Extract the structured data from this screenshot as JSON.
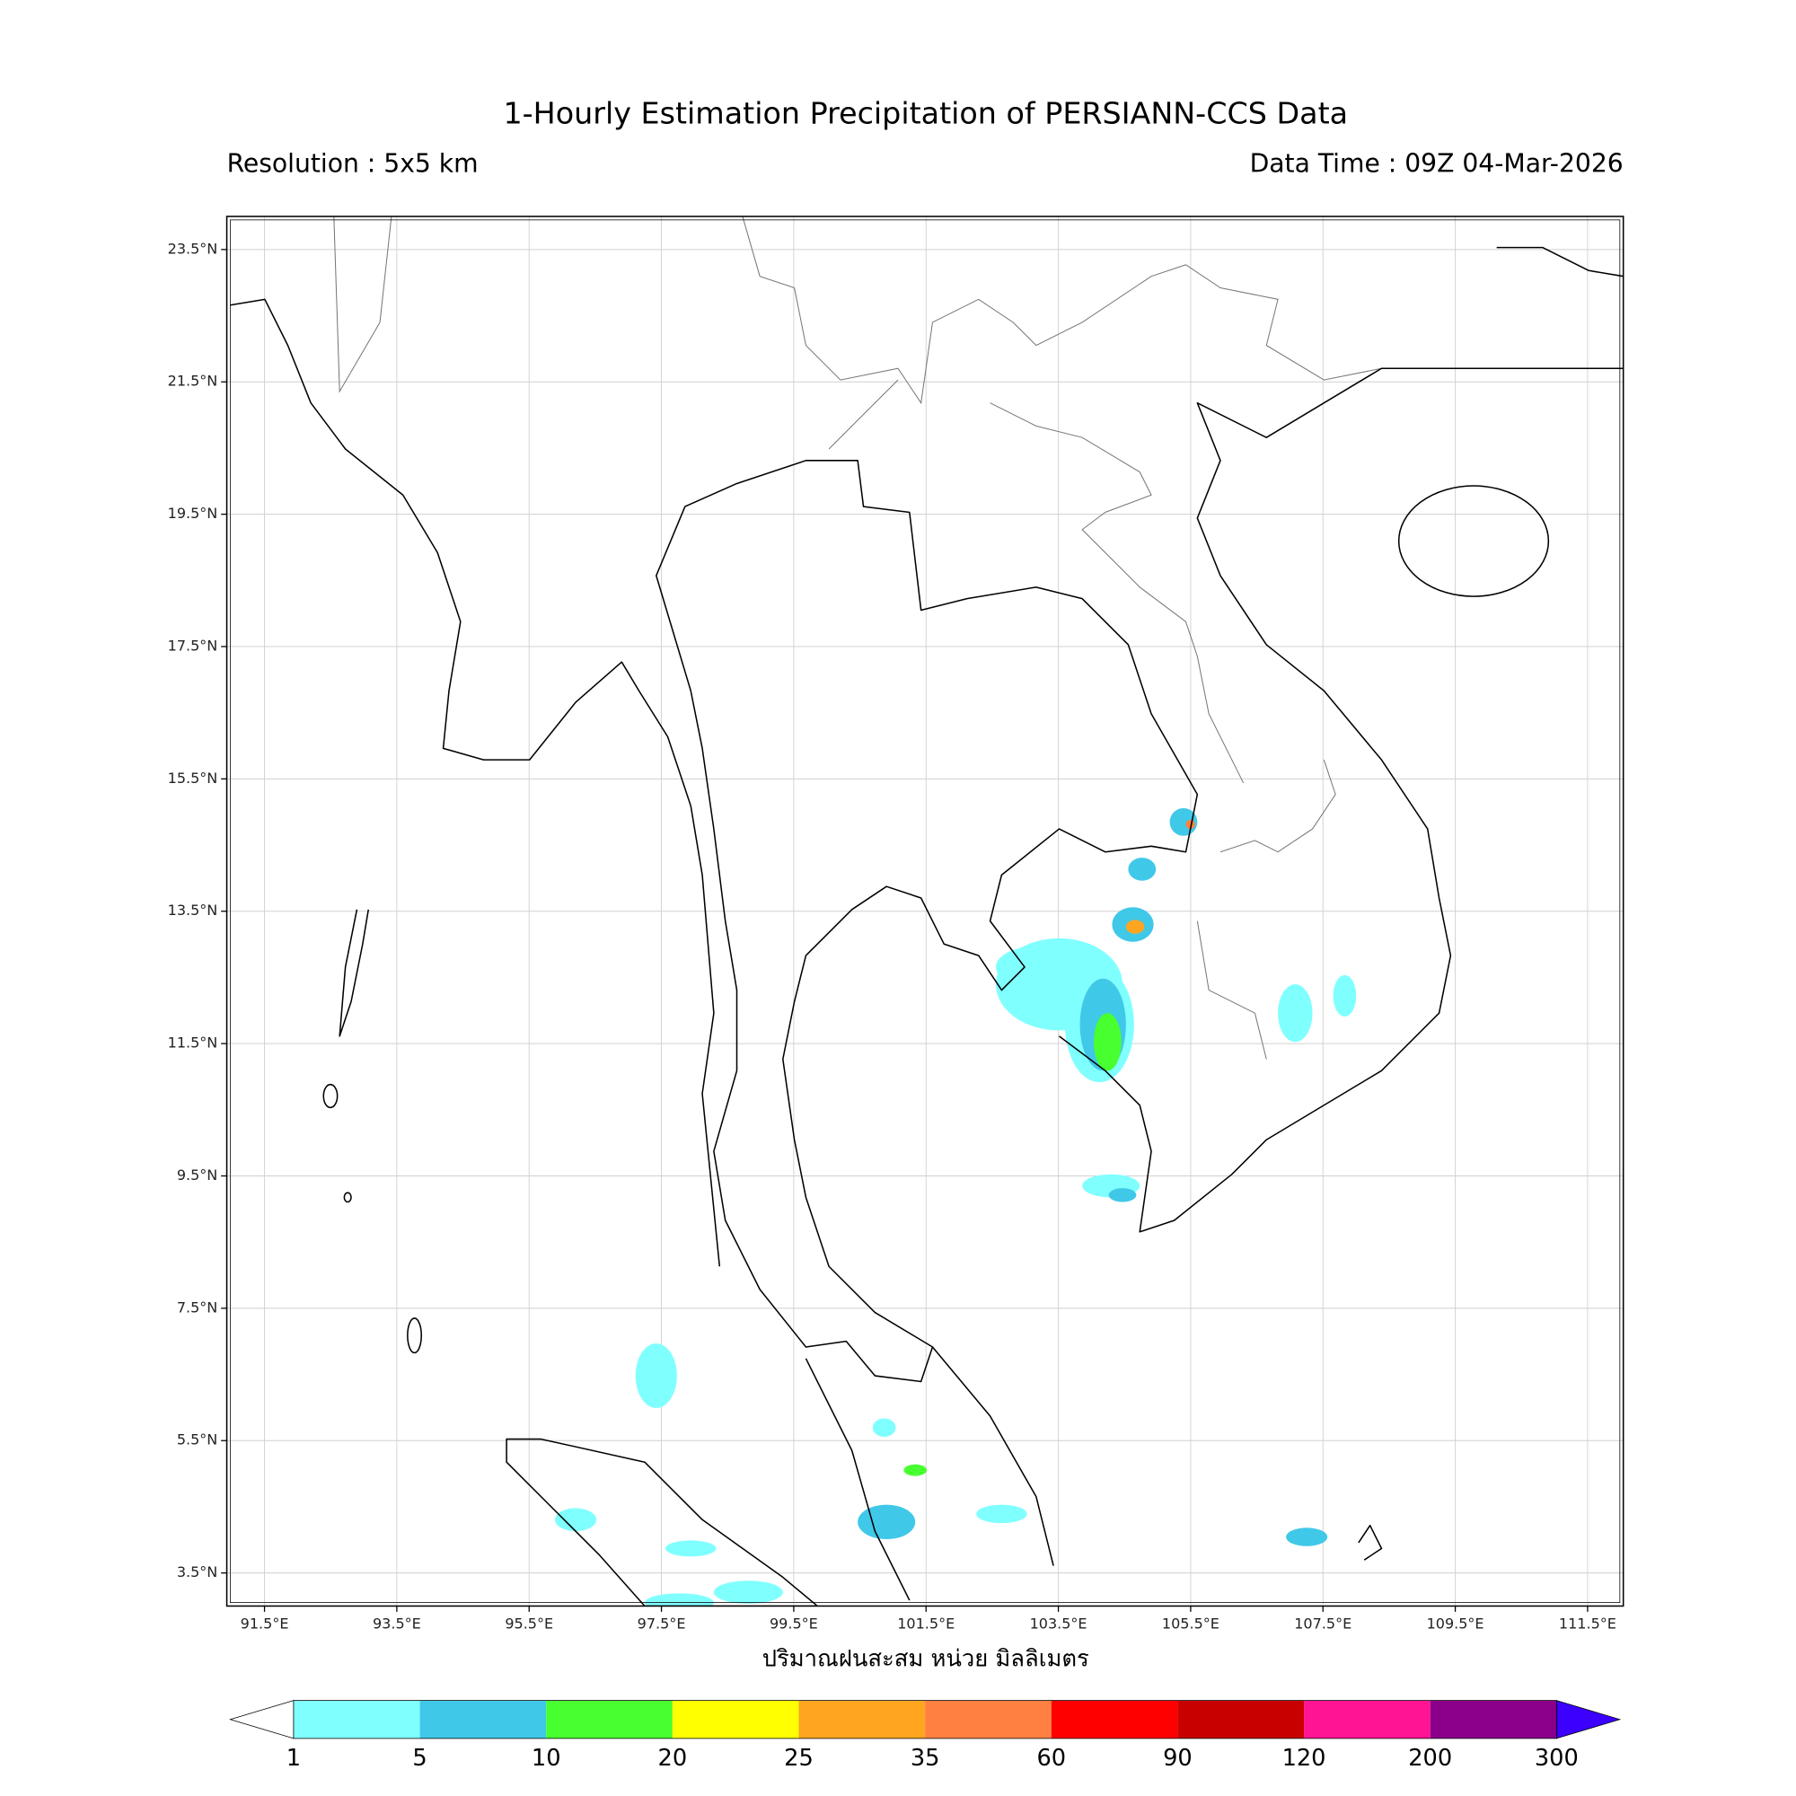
{
  "header": {
    "title": "1-Hourly Estimation Precipitation of PERSIANN-CCS Data",
    "resolution": "Resolution : 5x5 km",
    "data_time": "Data Time : 09Z 04-Mar-2026"
  },
  "map": {
    "lonlim": [
      90.93,
      112.04
    ],
    "latlim": [
      3.0,
      24.0
    ],
    "lon_ticks": [
      {
        "value": 91.5,
        "label": "91.5°E"
      },
      {
        "value": 93.5,
        "label": "93.5°E"
      },
      {
        "value": 95.5,
        "label": "95.5°E"
      },
      {
        "value": 97.5,
        "label": "97.5°E"
      },
      {
        "value": 99.5,
        "label": "99.5°E"
      },
      {
        "value": 101.5,
        "label": "101.5°E"
      },
      {
        "value": 103.5,
        "label": "103.5°E"
      },
      {
        "value": 105.5,
        "label": "105.5°E"
      },
      {
        "value": 107.5,
        "label": "107.5°E"
      },
      {
        "value": 109.5,
        "label": "109.5°E"
      },
      {
        "value": 111.5,
        "label": "111.5°E"
      }
    ],
    "lat_ticks": [
      {
        "value": 23.5,
        "label": "23.5°N"
      },
      {
        "value": 21.5,
        "label": "21.5°N"
      },
      {
        "value": 19.5,
        "label": "19.5°N"
      },
      {
        "value": 17.5,
        "label": "17.5°N"
      },
      {
        "value": 15.5,
        "label": "15.5°N"
      },
      {
        "value": 13.5,
        "label": "13.5°N"
      },
      {
        "value": 11.5,
        "label": "11.5°N"
      },
      {
        "value": 9.5,
        "label": "9.5°N"
      },
      {
        "value": 7.5,
        "label": "7.5°N"
      },
      {
        "value": 5.5,
        "label": "5.5°N"
      },
      {
        "value": 3.5,
        "label": "3.5°N"
      }
    ],
    "grid": true,
    "xlabel": "ปริมาณฝนสะสม หน่วย มิลลิเมตร"
  },
  "colorbar": {
    "levels": [
      1,
      5,
      10,
      20,
      25,
      35,
      60,
      90,
      120,
      200,
      300
    ],
    "colors": [
      "#80ffff",
      "#40c8e8",
      "#48ff30",
      "#ffff00",
      "#ffa520",
      "#ff8040",
      "#ff0000",
      "#c80000",
      "#ff1493",
      "#8b008b"
    ],
    "under_color": "#ffffff",
    "over_color": "#3c00ff"
  }
}
